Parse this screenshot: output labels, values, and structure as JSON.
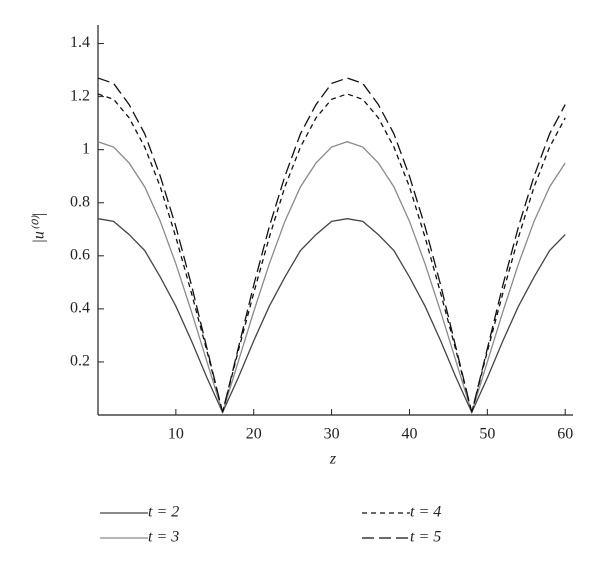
{
  "chart_data": {
    "type": "line",
    "xlabel": "z",
    "ylabel": "|u⁽⁰⁾|",
    "x": [
      0,
      2,
      4,
      6,
      8,
      10,
      12,
      14,
      16,
      18,
      20,
      22,
      24,
      26,
      28,
      30,
      32,
      34,
      36,
      38,
      40,
      42,
      44,
      46,
      48,
      50,
      52,
      54,
      56,
      58,
      60
    ],
    "series": [
      {
        "name": "t = 2",
        "color": "#444444",
        "dash": "none",
        "values": [
          0.74,
          0.73,
          0.68,
          0.62,
          0.52,
          0.41,
          0.28,
          0.14,
          0.01,
          0.14,
          0.28,
          0.41,
          0.52,
          0.62,
          0.68,
          0.73,
          0.74,
          0.73,
          0.68,
          0.62,
          0.52,
          0.41,
          0.28,
          0.14,
          0.01,
          0.14,
          0.28,
          0.41,
          0.52,
          0.62,
          0.68
        ]
      },
      {
        "name": "t = 3",
        "color": "#8a8a8a",
        "dash": "none",
        "values": [
          1.03,
          1.01,
          0.95,
          0.86,
          0.73,
          0.57,
          0.39,
          0.2,
          0.01,
          0.2,
          0.39,
          0.57,
          0.73,
          0.86,
          0.95,
          1.01,
          1.03,
          1.01,
          0.95,
          0.86,
          0.73,
          0.57,
          0.39,
          0.2,
          0.01,
          0.2,
          0.39,
          0.57,
          0.73,
          0.86,
          0.95
        ]
      },
      {
        "name": "t = 4",
        "color": "#111111",
        "dash": "5,4",
        "values": [
          1.21,
          1.19,
          1.12,
          1.01,
          0.86,
          0.67,
          0.46,
          0.24,
          0.01,
          0.24,
          0.46,
          0.67,
          0.86,
          1.01,
          1.12,
          1.19,
          1.21,
          1.19,
          1.12,
          1.01,
          0.86,
          0.67,
          0.46,
          0.24,
          0.01,
          0.24,
          0.46,
          0.67,
          0.86,
          1.01,
          1.12
        ]
      },
      {
        "name": "t = 5",
        "color": "#111111",
        "dash": "12,5",
        "values": [
          1.27,
          1.25,
          1.17,
          1.06,
          0.9,
          0.71,
          0.49,
          0.25,
          0.01,
          0.25,
          0.49,
          0.71,
          0.9,
          1.06,
          1.17,
          1.25,
          1.27,
          1.25,
          1.17,
          1.06,
          0.9,
          0.71,
          0.49,
          0.25,
          0.01,
          0.25,
          0.49,
          0.71,
          0.9,
          1.06,
          1.17
        ]
      }
    ],
    "xlim": [
      0,
      61
    ],
    "ylim": [
      0,
      1.47
    ],
    "xticks": [
      10,
      20,
      30,
      40,
      50,
      60
    ],
    "yticks": [
      0.2,
      0.4,
      0.6,
      0.8,
      1,
      1.2,
      1.4
    ],
    "legend": "below"
  }
}
